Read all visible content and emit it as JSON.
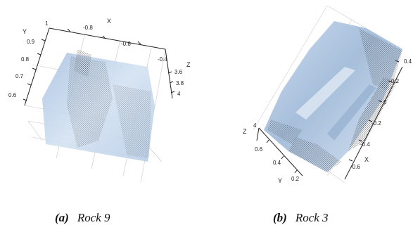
{
  "figures": [
    {
      "id": "a",
      "caption_letter": "(a)",
      "caption_text": "Rock 9",
      "axes": {
        "x_label": "X",
        "y_label": "Y",
        "z_label": "Z",
        "x_ticks": [
          "-0.8",
          "-0.6",
          "-0.4"
        ],
        "y_ticks": [
          "1",
          "0.9",
          "0.8",
          "0.7",
          "0.6"
        ],
        "z_ticks": [
          "3.6",
          "3.8",
          "4"
        ]
      },
      "surface_color": "#b7cde6",
      "mesh_color": "#555555"
    },
    {
      "id": "b",
      "caption_letter": "(b)",
      "caption_text": "Rock 3",
      "axes": {
        "x_label": "X",
        "y_label": "Y",
        "z_label": "Z",
        "x_ticks": [
          "0.4",
          "0.2",
          "0",
          "-0.2",
          "-0.4",
          "-0.6"
        ],
        "y_ticks": [
          "0.6",
          "0.4",
          "0.2"
        ],
        "z_ticks": [
          "4"
        ]
      },
      "surface_color": "#b9cfe8",
      "mesh_color": "#444444"
    }
  ]
}
